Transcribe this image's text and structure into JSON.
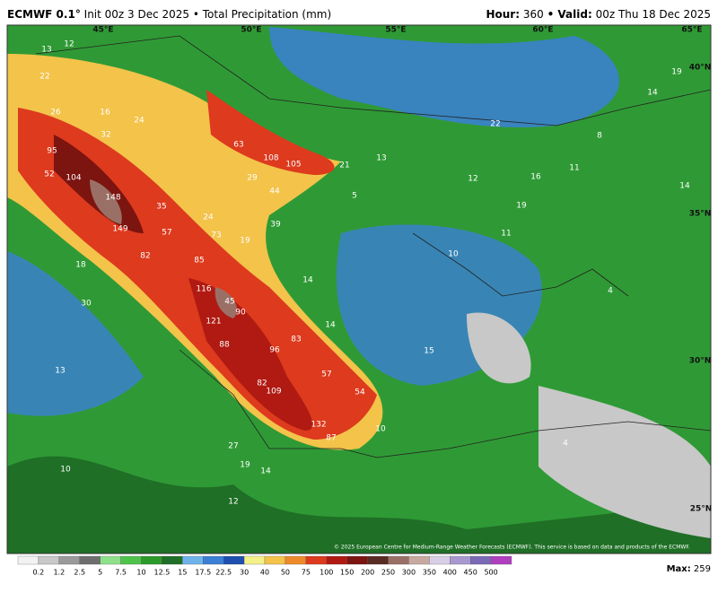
{
  "header": {
    "model": "ECMWF 0.1°",
    "run": "Init 00z 3 Dec 2025 • Total Precipitation (mm)",
    "hour_label": "Hour:",
    "hour": "360",
    "valid_label": "• Valid:",
    "valid": "00z Thu 18 Dec 2025"
  },
  "map": {
    "grid_labels": [
      "45°E",
      "50°E",
      "55°E",
      "60°E",
      "65°E",
      "40°N",
      "35°N",
      "30°N",
      "25°N"
    ],
    "values": [
      "13",
      "12",
      "22",
      "26",
      "16",
      "24",
      "32",
      "95",
      "104",
      "52",
      "148",
      "35",
      "24",
      "149",
      "57",
      "73",
      "19",
      "82",
      "85",
      "18",
      "116",
      "45",
      "121",
      "90",
      "88",
      "96",
      "83",
      "30",
      "13",
      "57",
      "54",
      "82",
      "109",
      "132",
      "87",
      "27",
      "19",
      "10",
      "14",
      "12",
      "63",
      "108",
      "105",
      "21",
      "29",
      "44",
      "39",
      "13",
      "5",
      "12",
      "16",
      "19",
      "11",
      "14",
      "10",
      "11",
      "14",
      "14",
      "15",
      "10",
      "19",
      "14",
      "22",
      "8",
      "4",
      "4"
    ],
    "copyright": "© 2025 European Centre for Medium-Range Weather Forecasts (ECMWF). This service is based on data and products of the ECMWF."
  },
  "legend": {
    "labels": [
      "0.2",
      "1.2",
      "2.5",
      "5",
      "7.5",
      "10",
      "12.5",
      "15",
      "17.5",
      "22.5",
      "30",
      "40",
      "50",
      "75",
      "100",
      "150",
      "200",
      "250",
      "300",
      "350",
      "400",
      "450",
      "500"
    ],
    "colors": [
      "#f2f2f2",
      "#c8c8c8",
      "#9a9a9a",
      "#6e6e6e",
      "#8ee08a",
      "#4fc24b",
      "#2b9a2b",
      "#1f6f26",
      "#6fb3ea",
      "#3b7fd6",
      "#1f4fb0",
      "#f4f08a",
      "#f3c34a",
      "#ee8a2a",
      "#dd3a1e",
      "#b01a12",
      "#7c1410",
      "#5a2a24",
      "#9a7066",
      "#c7a9a0",
      "#d8cfe6",
      "#a898cf",
      "#7a6ab5",
      "#b040c0",
      "#e040e0"
    ],
    "max_label": "Max:",
    "max": "259"
  }
}
